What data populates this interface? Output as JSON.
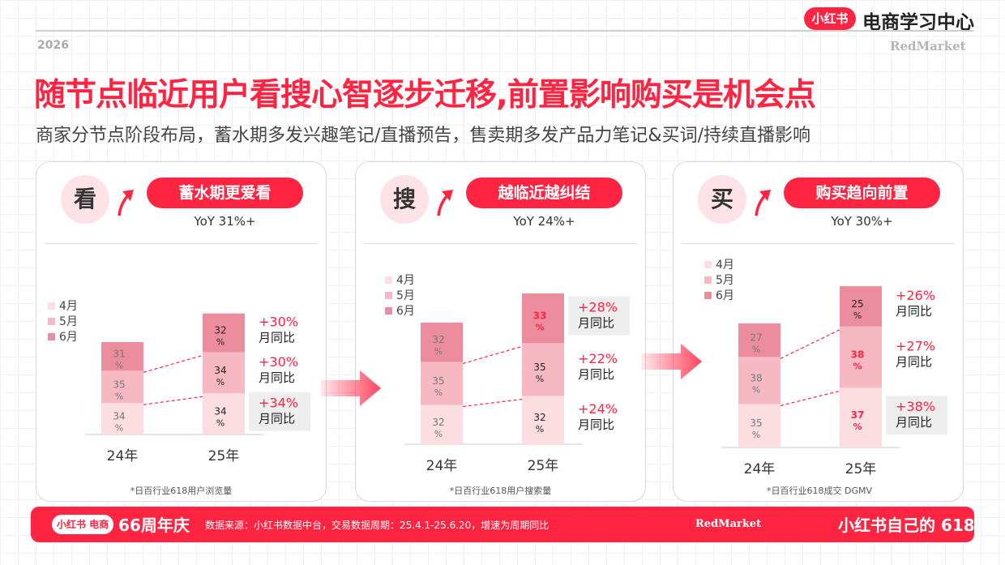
{
  "header": {
    "brand_badge": "小红书",
    "brand_title": "电商学习中心",
    "year": "2026",
    "brand_right": "RedMarket"
  },
  "headline": "随节点临近用户看搜心智逐步迁移,前置影响购买是机会点",
  "subtitle": "商家分节点阶段布局，蓄水期多发兴趣笔记/直播预告，售卖期多发产品力笔记&买词/持续直播影响",
  "colors": {
    "accent": "#ff2442",
    "april": "#fbdde2",
    "may": "#f6b9c3",
    "june": "#ec8d9d"
  },
  "panels": [
    {
      "icon": "看",
      "pill": "蓄水期更爱看",
      "yoy": "YoY 31%+",
      "footnote": "*日百行业618用户浏览量"
    },
    {
      "icon": "搜",
      "pill": "越临近越纠结",
      "yoy": "YoY 24%+",
      "footnote": "*日百行业618用户搜索量"
    },
    {
      "icon": "买",
      "pill": "购买趋向前置",
      "yoy": "YoY 30%+",
      "footnote": "*日百行业618成交 DGMV"
    }
  ],
  "chart_data": [
    {
      "type": "bar",
      "stacked": true,
      "categories": [
        "24年",
        "25年"
      ],
      "series": [
        {
          "name": "4月",
          "values": [
            34,
            34
          ],
          "labels": [
            "34\n%",
            "34\n%"
          ],
          "yoy": "+34%"
        },
        {
          "name": "5月",
          "values": [
            35,
            34
          ],
          "labels": [
            "35\n%",
            "34\n%"
          ],
          "yoy": "+30%"
        },
        {
          "name": "6月",
          "values": [
            31,
            32
          ],
          "labels": [
            "31\n%",
            "32\n%"
          ],
          "yoy": "+30%"
        }
      ],
      "yoy_label": "月同比",
      "highlight": [],
      "totals_ratio": [
        1.0,
        1.31
      ]
    },
    {
      "type": "bar",
      "stacked": true,
      "categories": [
        "24年",
        "25年"
      ],
      "series": [
        {
          "name": "4月",
          "values": [
            32,
            32
          ],
          "labels": [
            "32\n%",
            "32\n%"
          ],
          "yoy": "+24%"
        },
        {
          "name": "5月",
          "values": [
            35,
            35
          ],
          "labels": [
            "35\n%",
            "35\n%"
          ],
          "yoy": "+22%"
        },
        {
          "name": "6月",
          "values": [
            32,
            33
          ],
          "labels": [
            "32\n%",
            "33\n%"
          ],
          "yoy": "+28%"
        }
      ],
      "yoy_label": "月同比",
      "highlight": [
        "6月"
      ],
      "totals_ratio": [
        1.0,
        1.24
      ]
    },
    {
      "type": "bar",
      "stacked": true,
      "categories": [
        "24年",
        "25年"
      ],
      "series": [
        {
          "name": "4月",
          "values": [
            35,
            37
          ],
          "labels": [
            "35\n%",
            "37\n%"
          ],
          "yoy": "+38%"
        },
        {
          "name": "5月",
          "values": [
            38,
            38
          ],
          "labels": [
            "38\n%",
            "38\n%"
          ],
          "yoy": "+27%"
        },
        {
          "name": "6月",
          "values": [
            27,
            25
          ],
          "labels": [
            "27\n%",
            "25\n%"
          ],
          "yoy": "+26%"
        }
      ],
      "yoy_label": "月同比",
      "highlight": [
        "4月",
        "5月"
      ],
      "totals_ratio": [
        1.0,
        1.3
      ]
    }
  ],
  "footer": {
    "badge": "小红书 电商",
    "anniversary": "66周年庆",
    "source": "数据来源：小红书数据中台，交易数据周期：25.4.1-25.6.20，增速为周期同比",
    "brand": "RedMarket",
    "slogan": "小红书自己的 618"
  }
}
